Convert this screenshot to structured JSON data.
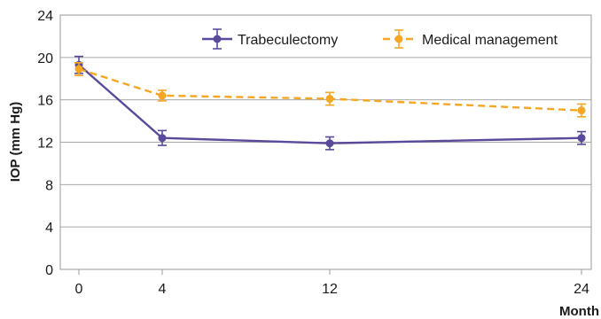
{
  "chart_data": {
    "type": "line",
    "x": [
      0,
      4,
      12,
      24
    ],
    "x_ticks": [
      "0",
      "4",
      "12",
      "24"
    ],
    "xlabel": "Month",
    "ylabel": "IOP (mm Hg)",
    "ylim": [
      0,
      24
    ],
    "y_ticks": [
      "0",
      "4",
      "8",
      "12",
      "16",
      "20",
      "24"
    ],
    "grid": true,
    "legend_position": "top-right",
    "series": [
      {
        "name": "Trabeculectomy",
        "values": [
          19.3,
          12.4,
          11.9,
          12.4
        ],
        "error": [
          0.8,
          0.7,
          0.6,
          0.6
        ],
        "color": "#5b4a9b",
        "line_style": "solid"
      },
      {
        "name": "Medical management",
        "values": [
          18.9,
          16.4,
          16.1,
          15.0
        ],
        "error": [
          0.6,
          0.5,
          0.6,
          0.6
        ],
        "color": "#f5a623",
        "line_style": "dashed"
      }
    ]
  }
}
